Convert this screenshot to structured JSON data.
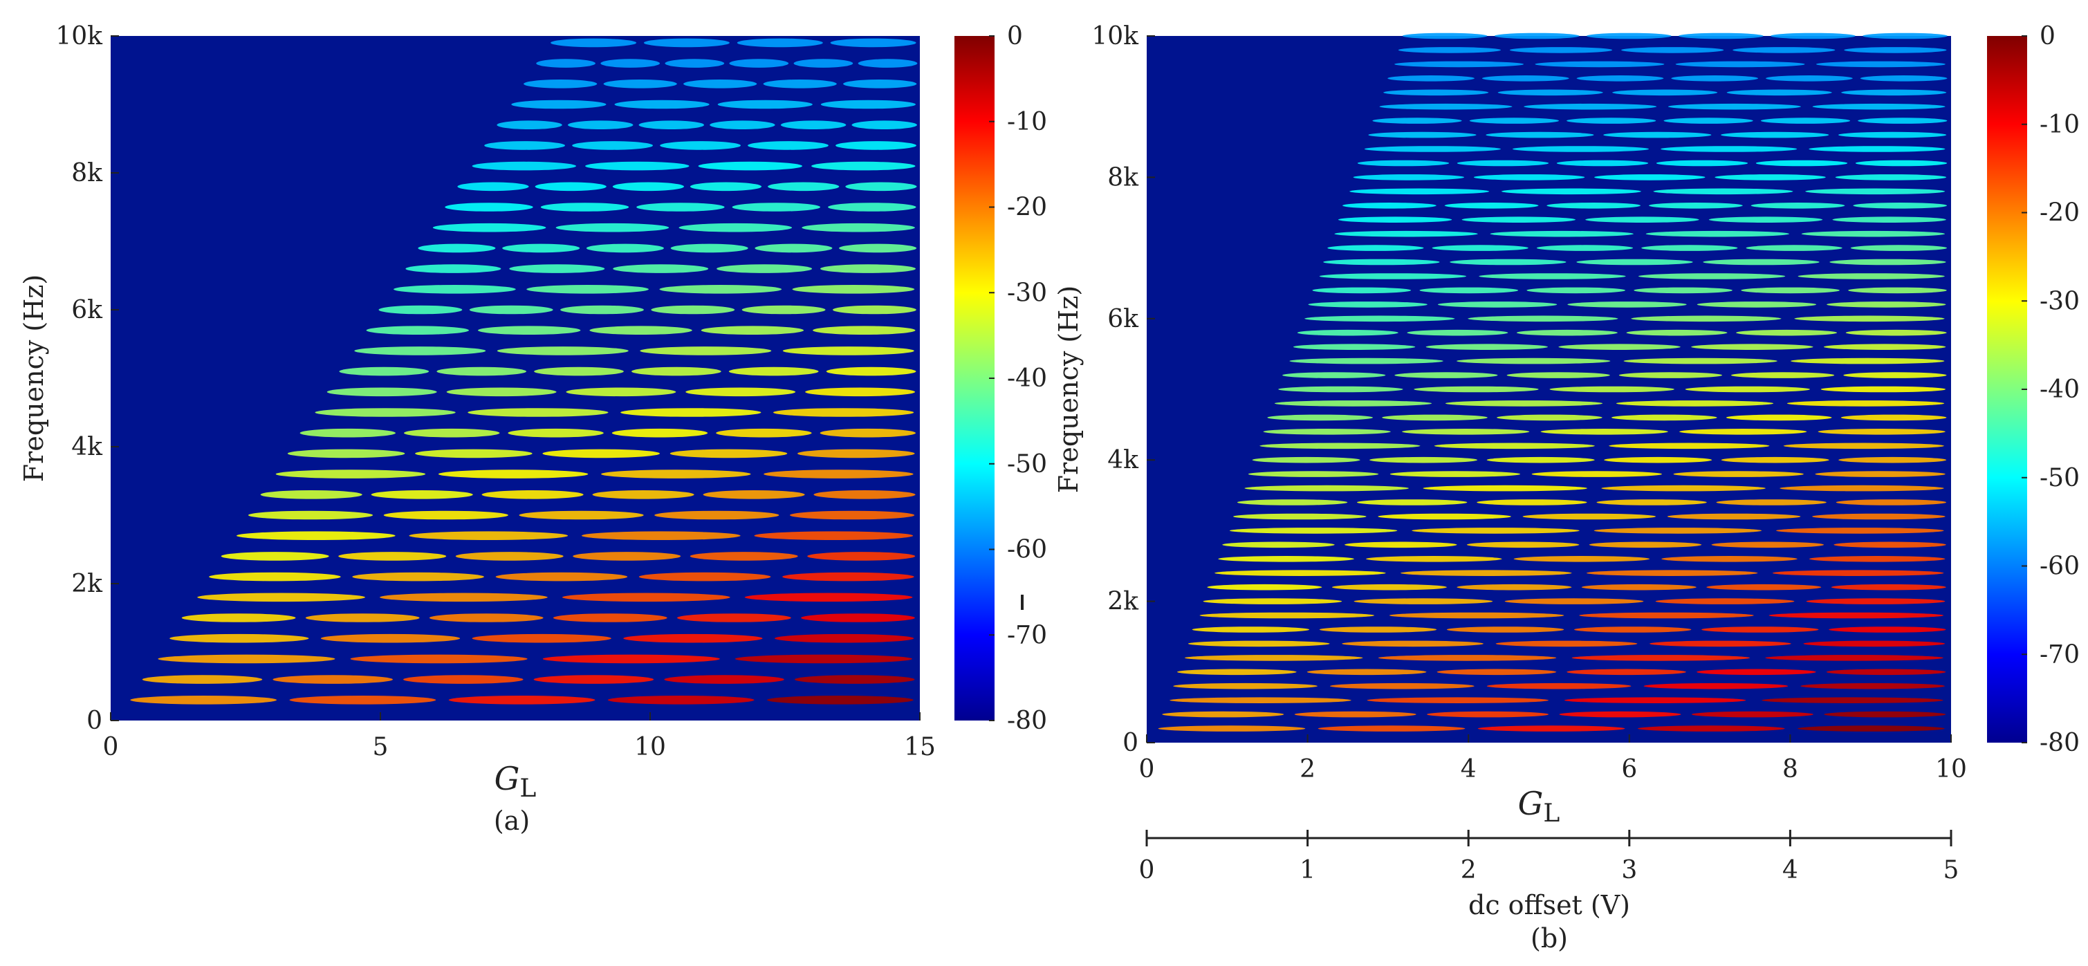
{
  "colors": {
    "bg": "#00138f",
    "jet": [
      "#00008f",
      "#0000ff",
      "#0080ff",
      "#00ffff",
      "#80ff80",
      "#ffff00",
      "#ff8000",
      "#ff0000",
      "#800000"
    ]
  },
  "chart_data": [
    {
      "type": "heatmap",
      "panel": "a",
      "caption": "(a)",
      "xlabel_sym": "G",
      "xlabel_sub": "L",
      "ylabel": "Frequency (Hz)",
      "xlim": [
        0,
        15
      ],
      "ylim": [
        0,
        10000
      ],
      "xticks": [
        {
          "v": 0,
          "t": "0"
        },
        {
          "v": 5,
          "t": "5"
        },
        {
          "v": 10,
          "t": "10"
        },
        {
          "v": 15,
          "t": "15"
        }
      ],
      "yticks": [
        {
          "v": 0,
          "t": "0"
        },
        {
          "v": 2000,
          "t": "2k"
        },
        {
          "v": 4000,
          "t": "4k"
        },
        {
          "v": 6000,
          "t": "6k"
        },
        {
          "v": 8000,
          "t": "8k"
        },
        {
          "v": 10000,
          "t": "10k"
        }
      ],
      "colorbar": {
        "range": [
          -80,
          0
        ],
        "ticks": [
          "0",
          "-10",
          "-20",
          "-30",
          "-40",
          "-50",
          "-60",
          "-70",
          "-80"
        ]
      },
      "fundamental_hz": 300,
      "onset_slope": 0.00165
    },
    {
      "type": "heatmap",
      "panel": "b",
      "caption": "(b)",
      "xlabel_sym": "G",
      "xlabel_sub": "L",
      "ylabel": "Frequency (Hz)",
      "xlim": [
        0,
        10
      ],
      "ylim": [
        0,
        10000
      ],
      "xticks": [
        {
          "v": 0,
          "t": "0"
        },
        {
          "v": 2,
          "t": "2"
        },
        {
          "v": 4,
          "t": "4"
        },
        {
          "v": 6,
          "t": "6"
        },
        {
          "v": 8,
          "t": "8"
        },
        {
          "v": 10,
          "t": "10"
        }
      ],
      "yticks": [
        {
          "v": 0,
          "t": "0"
        },
        {
          "v": 2000,
          "t": "2k"
        },
        {
          "v": 4000,
          "t": "4k"
        },
        {
          "v": 6000,
          "t": "6k"
        },
        {
          "v": 8000,
          "t": "8k"
        },
        {
          "v": 10000,
          "t": "10k"
        }
      ],
      "colorbar": {
        "range": [
          -80,
          0
        ],
        "ticks": [
          "0",
          "-10",
          "-20",
          "-30",
          "-40",
          "-50",
          "-60",
          "-70",
          "-80"
        ]
      },
      "fundamental_hz": 200,
      "onset_slope": 0.00095,
      "secondary_axis": {
        "label": "dc offset (V)",
        "range": [
          0,
          5
        ],
        "ticks": [
          "0",
          "1",
          "2",
          "3",
          "4",
          "5"
        ]
      }
    }
  ]
}
